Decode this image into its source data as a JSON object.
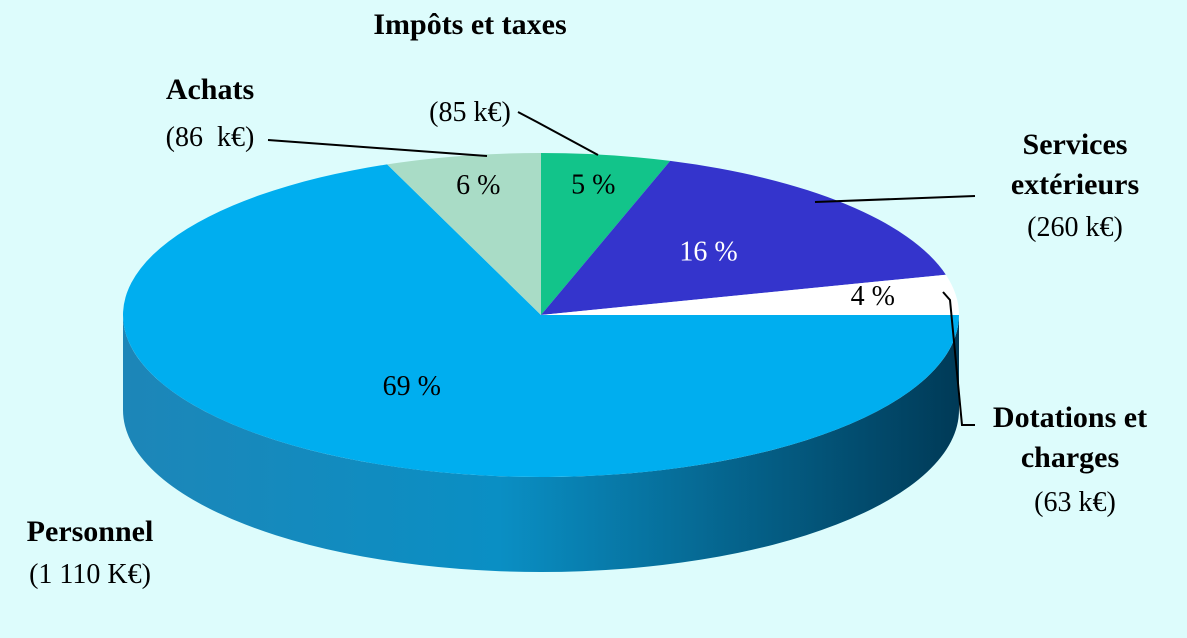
{
  "chart_data": {
    "type": "pie",
    "categories": [
      "Impôts et taxes",
      "Services extérieurs",
      "Dotations et charges",
      "Personnel",
      "Achats"
    ],
    "values": [
      5,
      16,
      4,
      69,
      6
    ],
    "value_labels": [
      "5 %",
      "16 %",
      "4 %",
      "69 %",
      "6 %"
    ],
    "amount_labels": [
      "(85 k€)",
      "(260 k€)",
      "(63 k€)",
      "(1 110 K€)",
      "(86  k€)"
    ],
    "colors": [
      "#12c48a",
      "#3434cc",
      "#ffffff",
      "#00aeef",
      "#a9dcc6"
    ]
  }
}
